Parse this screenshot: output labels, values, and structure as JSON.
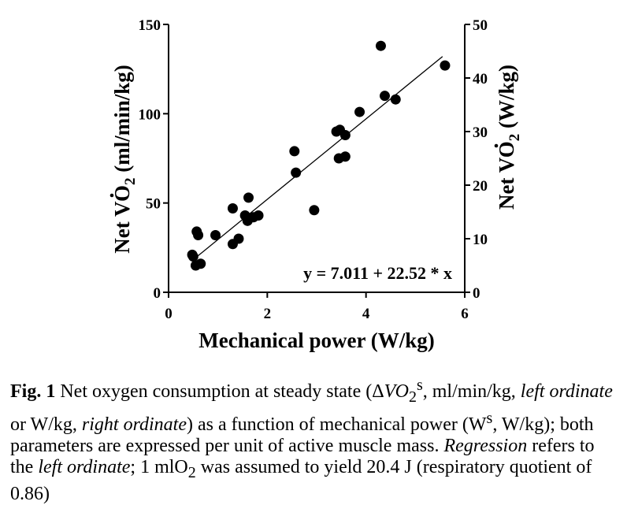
{
  "chart_data": {
    "type": "scatter",
    "x_label": "Mechanical power (W/kg)",
    "y_label_left": {
      "prefix": "Net ",
      "v": "V",
      "o2": "O",
      "sub": "2",
      "unit": " (ml/min/kg)"
    },
    "y_label_right": {
      "prefix": "Net ",
      "v": "V",
      "o2": "O",
      "sub": "2",
      "unit": " (W/kg)"
    },
    "xlim": [
      0,
      6
    ],
    "ylim_left": [
      0,
      150
    ],
    "ylim_right": [
      0,
      50
    ],
    "x_ticks": [
      0,
      2,
      4,
      6
    ],
    "y_ticks_left": [
      0,
      50,
      100,
      150
    ],
    "y_ticks_right": [
      0,
      10,
      20,
      30,
      40,
      50
    ],
    "regression": {
      "intercept": 7.011,
      "slope": 22.52,
      "x_range": [
        0.5,
        5.55
      ],
      "label": "y = 7.011 + 22.52 * x"
    },
    "points": [
      {
        "x": 0.48,
        "y": 21
      },
      {
        "x": 0.5,
        "y": 20
      },
      {
        "x": 0.55,
        "y": 15
      },
      {
        "x": 0.57,
        "y": 34
      },
      {
        "x": 0.6,
        "y": 32
      },
      {
        "x": 0.65,
        "y": 16
      },
      {
        "x": 0.95,
        "y": 32
      },
      {
        "x": 1.3,
        "y": 47
      },
      {
        "x": 1.3,
        "y": 27
      },
      {
        "x": 1.42,
        "y": 30
      },
      {
        "x": 1.55,
        "y": 43
      },
      {
        "x": 1.6,
        "y": 40
      },
      {
        "x": 1.62,
        "y": 53
      },
      {
        "x": 1.72,
        "y": 42
      },
      {
        "x": 1.82,
        "y": 43
      },
      {
        "x": 2.55,
        "y": 79
      },
      {
        "x": 2.58,
        "y": 67
      },
      {
        "x": 2.95,
        "y": 46
      },
      {
        "x": 3.4,
        "y": 90
      },
      {
        "x": 3.45,
        "y": 75
      },
      {
        "x": 3.47,
        "y": 91
      },
      {
        "x": 3.58,
        "y": 88
      },
      {
        "x": 3.58,
        "y": 76
      },
      {
        "x": 3.87,
        "y": 101
      },
      {
        "x": 4.3,
        "y": 138
      },
      {
        "x": 4.38,
        "y": 110
      },
      {
        "x": 4.6,
        "y": 108
      },
      {
        "x": 5.6,
        "y": 127
      }
    ]
  },
  "caption": {
    "label": "Fig. 1",
    "t1": "  Net oxygen consumption at steady state (Δ",
    "vo2_v": "V",
    "vo2_o": "O",
    "vo2_sub": "2",
    "vo2_sup": "s",
    "t2": ", ml/min/kg, ",
    "left_ordinate": "left ordinate",
    "t3": " or W/kg, ",
    "right_ordinate": "right ordinate",
    "t4": ") as a function of mechanical power (W",
    "w_sup": "s",
    "t5": ", W/kg); both parameters are expressed per unit of active muscle mass. ",
    "regression": "Regression",
    "t6": " refers to the ",
    "left_ordinate_2": "left ordinate",
    "t7": "; 1 mlO",
    "o2_sub": "2",
    "t8": " was assumed to yield 20.4 J (respiratory quotient of 0.86)"
  }
}
